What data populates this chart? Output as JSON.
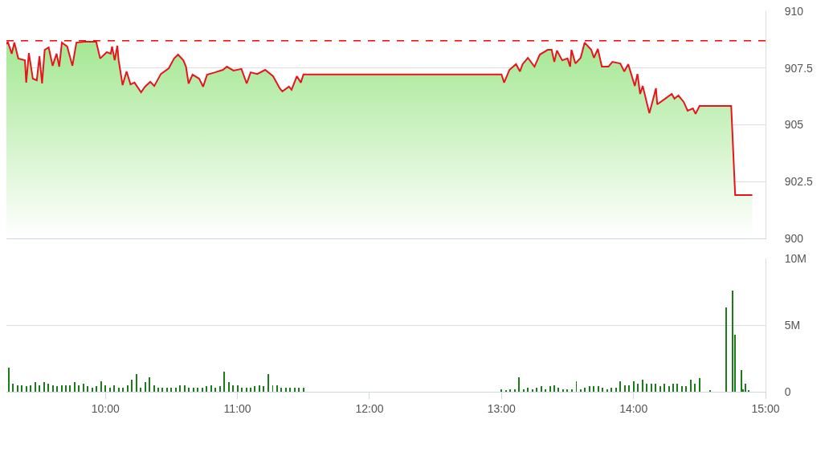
{
  "chart_data": [
    {
      "type": "area",
      "xlim": [
        9.25,
        15
      ],
      "ylim": [
        900,
        910
      ],
      "yticks": [
        910,
        907.5,
        905,
        902.5,
        900
      ],
      "grid": "y",
      "tick_labels": "y",
      "ref_lines": [
        {
          "axis": "y",
          "value": 908.7,
          "color": "#ff0000",
          "line_style": "dashed"
        }
      ],
      "series": [
        {
          "color": "#e8141b",
          "x": [
            9.25,
            9.26,
            9.29,
            9.31,
            9.34,
            9.39,
            9.4,
            9.42,
            9.45,
            9.48,
            9.5,
            9.52,
            9.54,
            9.57,
            9.6,
            9.63,
            9.65,
            9.67,
            9.71,
            9.75,
            9.78,
            9.84,
            9.93,
            9.96,
            10.01,
            10.04,
            10.05,
            10.07,
            10.09,
            10.1,
            10.13,
            10.16,
            10.19,
            10.22,
            10.27,
            10.3,
            10.34,
            10.37,
            10.42,
            10.48,
            10.52,
            10.55,
            10.59,
            10.61,
            10.63,
            10.66,
            10.71,
            10.74,
            10.77,
            10.83,
            10.89,
            10.92,
            10.97,
            11.03,
            11.07,
            11.1,
            11.15,
            11.21,
            11.27,
            11.32,
            11.34,
            11.39,
            11.41,
            11.45,
            11.48,
            11.5,
            13.0,
            13.02,
            13.06,
            13.11,
            13.14,
            13.16,
            13.2,
            13.25,
            13.29,
            13.35,
            13.38,
            13.4,
            13.42,
            13.46,
            13.5,
            13.52,
            13.53,
            13.56,
            13.6,
            13.63,
            13.68,
            13.7,
            13.73,
            13.76,
            13.81,
            13.84,
            13.9,
            13.93,
            13.96,
            14.01,
            14.03,
            14.05,
            14.07,
            14.12,
            14.14,
            14.17,
            14.18,
            14.23,
            14.29,
            14.31,
            14.34,
            14.38,
            14.41,
            14.45,
            14.47,
            14.5,
            14.74,
            14.77,
            14.9
          ],
          "values": [
            908.55,
            908.66,
            908.13,
            908.62,
            907.92,
            907.84,
            906.86,
            908.16,
            907.03,
            906.96,
            908.02,
            906.82,
            908.3,
            908.41,
            907.6,
            908.13,
            907.56,
            908.62,
            908.45,
            907.6,
            908.62,
            908.66,
            908.66,
            907.92,
            908.2,
            908.13,
            908.45,
            907.84,
            908.48,
            907.84,
            906.75,
            907.35,
            906.78,
            906.86,
            906.43,
            906.68,
            906.89,
            906.71,
            907.24,
            907.49,
            907.92,
            908.09,
            907.84,
            907.56,
            906.82,
            907.21,
            907.03,
            906.68,
            907.21,
            907.31,
            907.42,
            907.56,
            907.39,
            907.46,
            906.82,
            907.31,
            907.24,
            907.42,
            907.14,
            906.61,
            906.47,
            906.68,
            906.54,
            907.14,
            906.86,
            907.22,
            907.22,
            906.86,
            907.42,
            907.67,
            907.35,
            907.67,
            907.95,
            907.56,
            908.09,
            908.3,
            908.3,
            907.77,
            908.27,
            907.84,
            907.92,
            907.56,
            908.3,
            907.7,
            907.95,
            908.62,
            908.3,
            907.95,
            908.34,
            907.56,
            907.56,
            907.77,
            907.7,
            907.35,
            907.67,
            906.71,
            907.24,
            906.36,
            906.71,
            905.51,
            905.94,
            906.61,
            905.9,
            906.11,
            906.36,
            906.15,
            906.29,
            906.01,
            905.62,
            905.72,
            905.48,
            905.83,
            905.83,
            901.91,
            901.91
          ]
        }
      ]
    },
    {
      "type": "bar",
      "xlim": [
        9.25,
        15
      ],
      "ylim": [
        0,
        10
      ],
      "yticks": [
        {
          "value": 10,
          "label": "10M"
        },
        {
          "value": 5,
          "label": "5M"
        },
        0
      ],
      "xticks": [
        {
          "value": 10,
          "label": "10:00"
        },
        {
          "value": 11,
          "label": "11:00"
        },
        {
          "value": 12,
          "label": "12:00"
        },
        {
          "value": 13,
          "label": "13:00"
        },
        {
          "value": 14,
          "label": "14:00"
        },
        {
          "value": 15,
          "label": "15:00"
        }
      ],
      "grid": "y",
      "series": [
        {
          "color": "#1a7d1a",
          "x": [
            9.267,
            9.3,
            9.333,
            9.367,
            9.4,
            9.433,
            9.467,
            9.5,
            9.533,
            9.567,
            9.6,
            9.633,
            9.667,
            9.7,
            9.733,
            9.767,
            9.8,
            9.833,
            9.867,
            9.9,
            9.933,
            9.967,
            10,
            10.033,
            10.067,
            10.1,
            10.133,
            10.167,
            10.2,
            10.233,
            10.267,
            10.3,
            10.333,
            10.367,
            10.4,
            10.433,
            10.467,
            10.5,
            10.533,
            10.567,
            10.6,
            10.633,
            10.667,
            10.7,
            10.733,
            10.767,
            10.8,
            10.833,
            10.867,
            10.9,
            10.933,
            10.967,
            11,
            11.033,
            11.067,
            11.1,
            11.133,
            11.167,
            11.2,
            11.233,
            11.267,
            11.3,
            11.333,
            11.367,
            11.4,
            11.433,
            11.467,
            11.5,
            13,
            13.033,
            13.067,
            13.1,
            13.133,
            13.167,
            13.2,
            13.233,
            13.267,
            13.3,
            13.333,
            13.367,
            13.4,
            13.433,
            13.467,
            13.5,
            13.533,
            13.567,
            13.6,
            13.633,
            13.667,
            13.7,
            13.733,
            13.767,
            13.8,
            13.833,
            13.867,
            13.9,
            13.933,
            13.967,
            14,
            14.033,
            14.067,
            14.1,
            14.133,
            14.167,
            14.2,
            14.233,
            14.267,
            14.3,
            14.333,
            14.367,
            14.4,
            14.433,
            14.467,
            14.5,
            14.58,
            14.7,
            14.75,
            14.77,
            14.82,
            14.83,
            14.85,
            14.87
          ],
          "values": [
            1.8,
            0.6,
            0.5,
            0.5,
            0.4,
            0.5,
            0.7,
            0.5,
            0.7,
            0.6,
            0.5,
            0.4,
            0.5,
            0.5,
            0.5,
            0.7,
            0.5,
            0.6,
            0.4,
            0.3,
            0.4,
            0.8,
            0.5,
            0.3,
            0.5,
            0.3,
            0.3,
            0.5,
            0.9,
            1.3,
            0.3,
            0.7,
            1.1,
            0.5,
            0.3,
            0.3,
            0.3,
            0.3,
            0.3,
            0.5,
            0.5,
            0.3,
            0.3,
            0.3,
            0.3,
            0.4,
            0.5,
            0.3,
            0.4,
            1.5,
            0.7,
            0.5,
            0.5,
            0.3,
            0.3,
            0.3,
            0.4,
            0.5,
            0.4,
            1.3,
            0.5,
            0.5,
            0.3,
            0.3,
            0.3,
            0.3,
            0.3,
            0.3,
            0.2,
            0.1,
            0.2,
            0.2,
            1.1,
            0.2,
            0.3,
            0.2,
            0.3,
            0.4,
            0.2,
            0.4,
            0.5,
            0.3,
            0.2,
            0.2,
            0.2,
            0.8,
            0.2,
            0.3,
            0.4,
            0.4,
            0.4,
            0.3,
            0.2,
            0.3,
            0.3,
            0.8,
            0.5,
            0.5,
            0.8,
            0.6,
            0.9,
            0.6,
            0.6,
            0.6,
            0.4,
            0.6,
            0.4,
            0.6,
            0.6,
            0.4,
            0.4,
            0.9,
            0.6,
            1.0,
            0.1,
            6.3,
            7.6,
            4.3,
            1.6,
            0.2,
            0.6,
            0.1
          ]
        }
      ]
    }
  ]
}
